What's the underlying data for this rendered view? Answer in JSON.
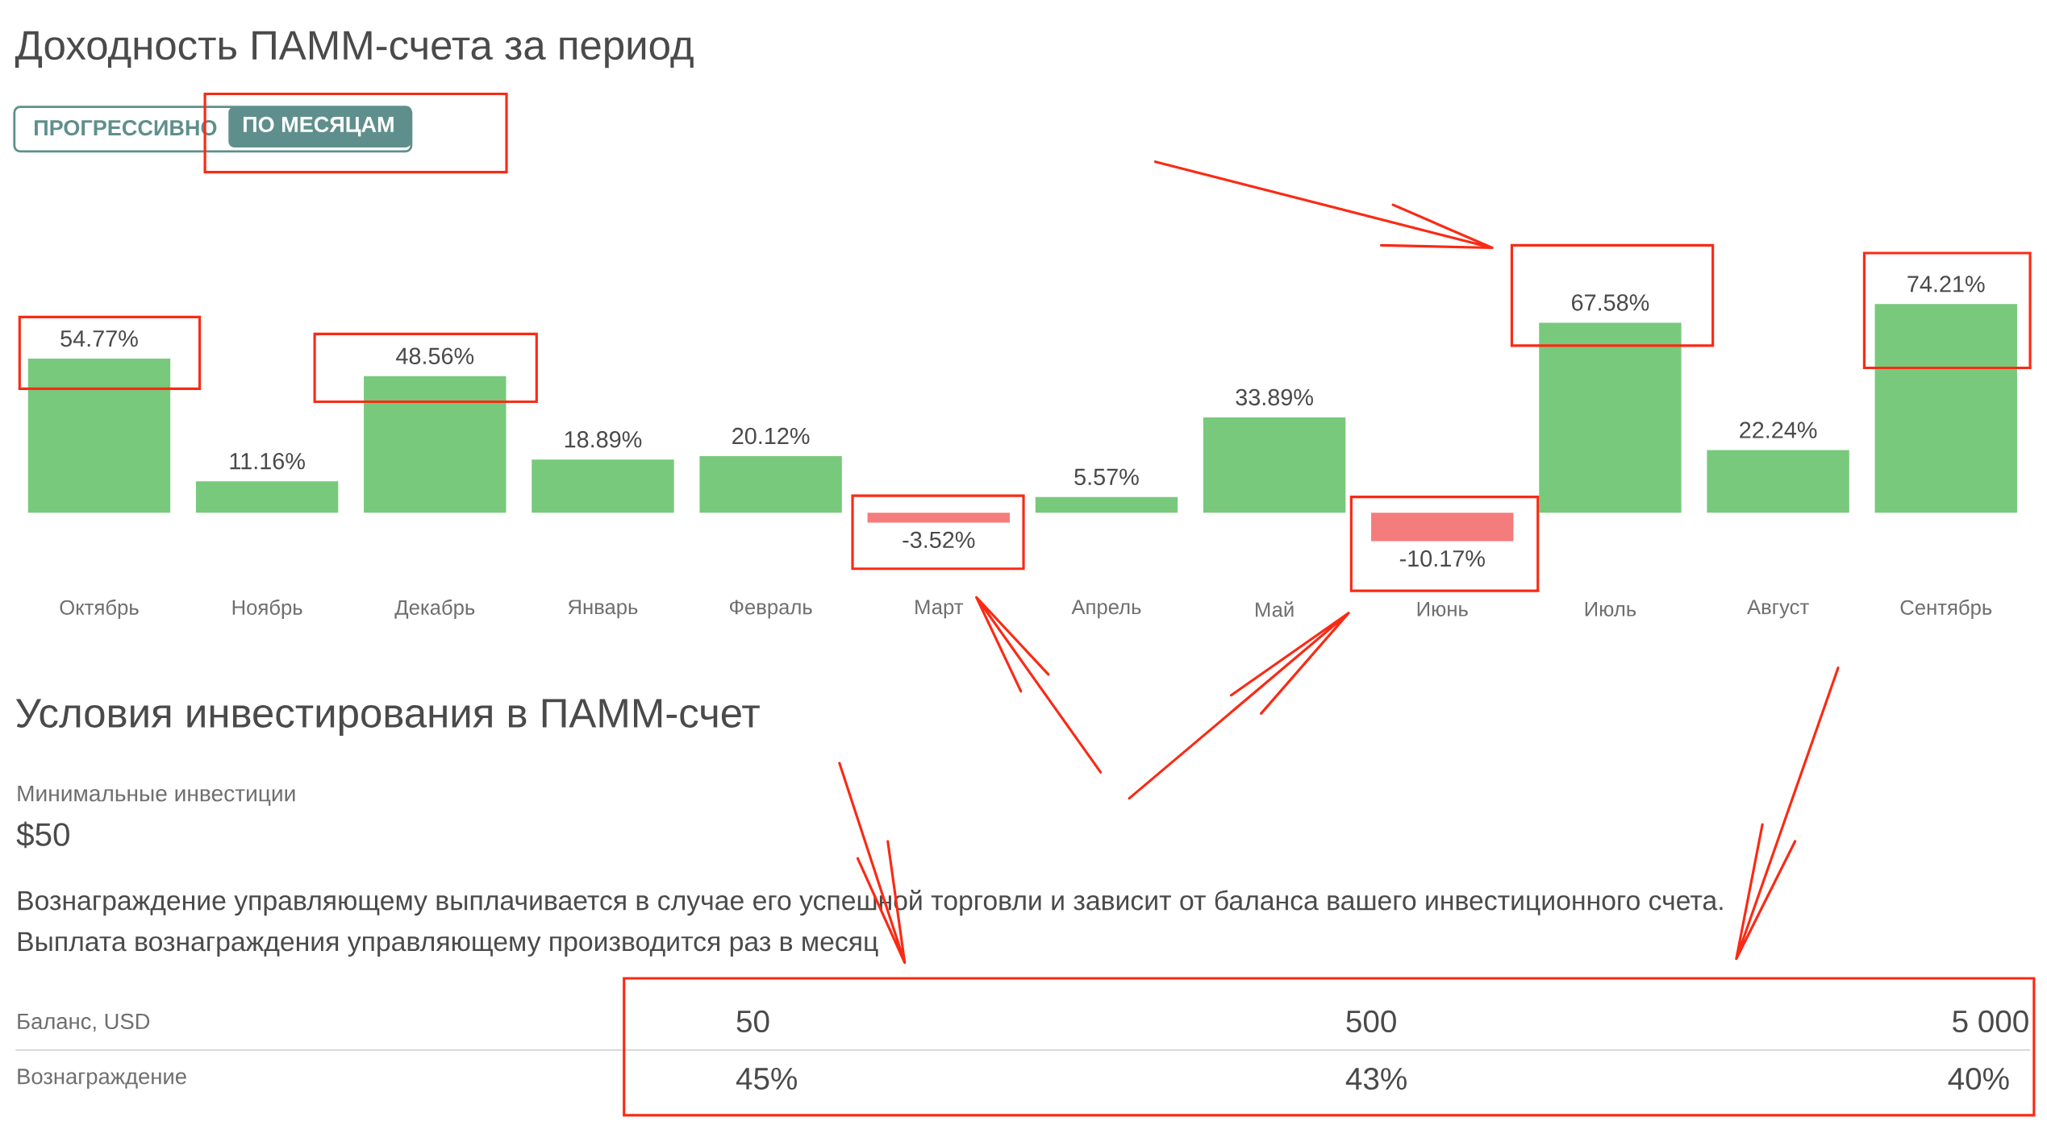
{
  "chart_data": {
    "type": "bar",
    "title": "Доходность ПАММ-счета за период",
    "categories": [
      "Октябрь",
      "Ноябрь",
      "Декабрь",
      "Январь",
      "Февраль",
      "Март",
      "Апрель",
      "Май",
      "Июнь",
      "Июль",
      "Август",
      "Сентябрь"
    ],
    "values": [
      54.77,
      11.16,
      48.56,
      18.89,
      20.12,
      -3.52,
      5.57,
      33.89,
      -10.17,
      67.58,
      22.24,
      74.21
    ],
    "colors": [
      "#78c97c",
      "#78c97c",
      "#78c97c",
      "#78c97c",
      "#78c97c",
      "#f47c7c",
      "#78c97c",
      "#78c97c",
      "#f47c7c",
      "#78c97c",
      "#78c97c",
      "#78c97c"
    ],
    "value_labels": [
      "54.77%",
      "11.16%",
      "48.56%",
      "18.89%",
      "20.12%",
      "-3.52%",
      "5.57%",
      "33.89%",
      "-10.17%",
      "67.58%",
      "22.24%",
      "74.21%"
    ],
    "annotations": [
      "ПРОГРЕССИВНО",
      "ПО МЕСЯЦАМ",
      "Условия инвестирования в ПАММ-счет",
      "Минимальные инвестиции",
      "$50",
      "Вознаграждение управляющему выплачивается в случае его успешной торговли и зависит от баланса вашего инвестиционного счета.",
      "Выплата вознаграждения управляющему производится раз в месяц",
      "Баланс, USD",
      "50",
      "500",
      "5 000",
      "Вознаграждение",
      "45%",
      "43%",
      "40%"
    ]
  }
}
